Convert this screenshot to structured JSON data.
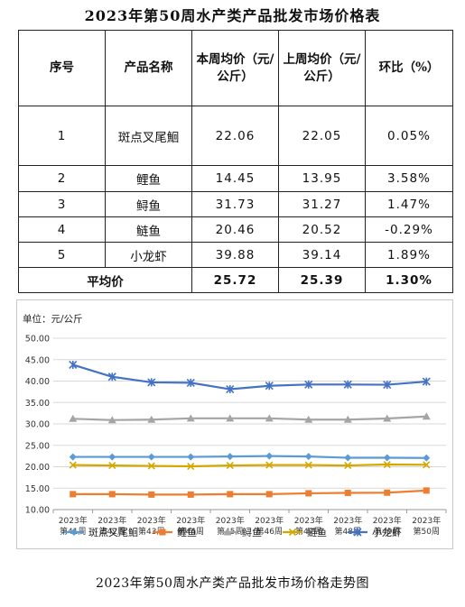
{
  "title": "2023年第50周水产类产品批发市场价格表",
  "table": {
    "headers": [
      "序号",
      "产品名称",
      "本周均价（元/公斤）",
      "上周均价（元/公斤）",
      "环比（%）"
    ],
    "rows": [
      {
        "no": "1",
        "name": "斑点叉尾鮰",
        "this_week": "22.06",
        "last_week": "22.05",
        "change": "0.05%"
      },
      {
        "no": "2",
        "name": "鲤鱼",
        "this_week": "14.45",
        "last_week": "13.95",
        "change": "3.58%"
      },
      {
        "no": "3",
        "name": "鲟鱼",
        "this_week": "31.73",
        "last_week": "31.27",
        "change": "1.47%"
      },
      {
        "no": "4",
        "name": "鲢鱼",
        "this_week": "20.46",
        "last_week": "20.52",
        "change": "-0.29%"
      },
      {
        "no": "5",
        "name": "小龙虾",
        "this_week": "39.88",
        "last_week": "39.14",
        "change": "1.89%"
      }
    ],
    "average": {
      "label": "平均价",
      "this_week": "25.72",
      "last_week": "25.39",
      "change": "1.30%"
    }
  },
  "chart_data": {
    "type": "line",
    "unit_label": "单位：元/公斤",
    "categories": [
      "2023年第41周",
      "2023年第42周",
      "2023年第43周",
      "2023年第44周",
      "2023年第45周",
      "2023年第46周",
      "2023年第47周",
      "2023年第48周",
      "2023年第49周",
      "2023年第50周"
    ],
    "ylim": [
      10,
      50
    ],
    "yticks": [
      "10.00",
      "15.00",
      "20.00",
      "25.00",
      "30.00",
      "35.00",
      "40.00",
      "45.00",
      "50.00"
    ],
    "grid": true,
    "legend_position": "bottom",
    "series": [
      {
        "name": "斑点叉尾鮰",
        "color": "#5b9bd5",
        "marker": "diamond",
        "values": [
          22.3,
          22.3,
          22.3,
          22.3,
          22.4,
          22.5,
          22.4,
          22.1,
          22.1,
          22.06
        ]
      },
      {
        "name": "鲤鱼",
        "color": "#ed7d31",
        "marker": "square",
        "values": [
          13.6,
          13.6,
          13.5,
          13.5,
          13.6,
          13.6,
          13.8,
          13.9,
          13.95,
          14.45
        ]
      },
      {
        "name": "鲟鱼",
        "color": "#a5a5a5",
        "marker": "triangle",
        "values": [
          31.2,
          30.9,
          31.0,
          31.3,
          31.3,
          31.3,
          31.0,
          31.0,
          31.27,
          31.73
        ]
      },
      {
        "name": "鲢鱼",
        "color": "#d4a800",
        "marker": "x",
        "values": [
          20.4,
          20.3,
          20.2,
          20.1,
          20.3,
          20.4,
          20.4,
          20.3,
          20.52,
          20.46
        ]
      },
      {
        "name": "小龙虾",
        "color": "#4472c4",
        "marker": "star",
        "values": [
          43.8,
          41.0,
          39.7,
          39.6,
          38.1,
          38.9,
          39.2,
          39.2,
          39.14,
          39.88
        ]
      }
    ]
  },
  "caption": "2023年第50周水产类产品批发市场价格走势图"
}
